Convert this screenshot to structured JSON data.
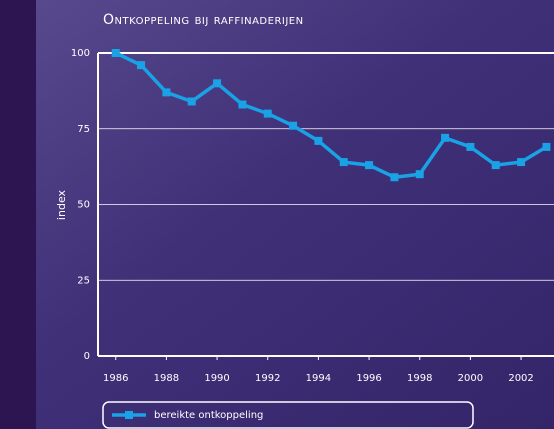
{
  "chart_data": {
    "type": "line",
    "title": "Ontkoppeling bij raffinaderijen",
    "y_label": "index",
    "x": [
      1986,
      1987,
      1988,
      1989,
      1990,
      1991,
      1992,
      1993,
      1994,
      1995,
      1996,
      1997,
      1998,
      1999,
      2000,
      2001,
      2002,
      2003
    ],
    "series": [
      {
        "name": "bereikte ontkoppeling",
        "color": "#19a2e6",
        "values": [
          100,
          96,
          87,
          84,
          90,
          83,
          80,
          76,
          71,
          64,
          63,
          59,
          60,
          72,
          69,
          63,
          64,
          69
        ]
      }
    ],
    "xlim": [
      1985.3,
      2003.3
    ],
    "xticks": [
      1986,
      1988,
      1990,
      1992,
      1994,
      1996,
      1998,
      2000,
      2002
    ],
    "ylim": [
      0,
      100
    ],
    "yticks": [
      0,
      25,
      50,
      75,
      100
    ],
    "grid": true
  }
}
